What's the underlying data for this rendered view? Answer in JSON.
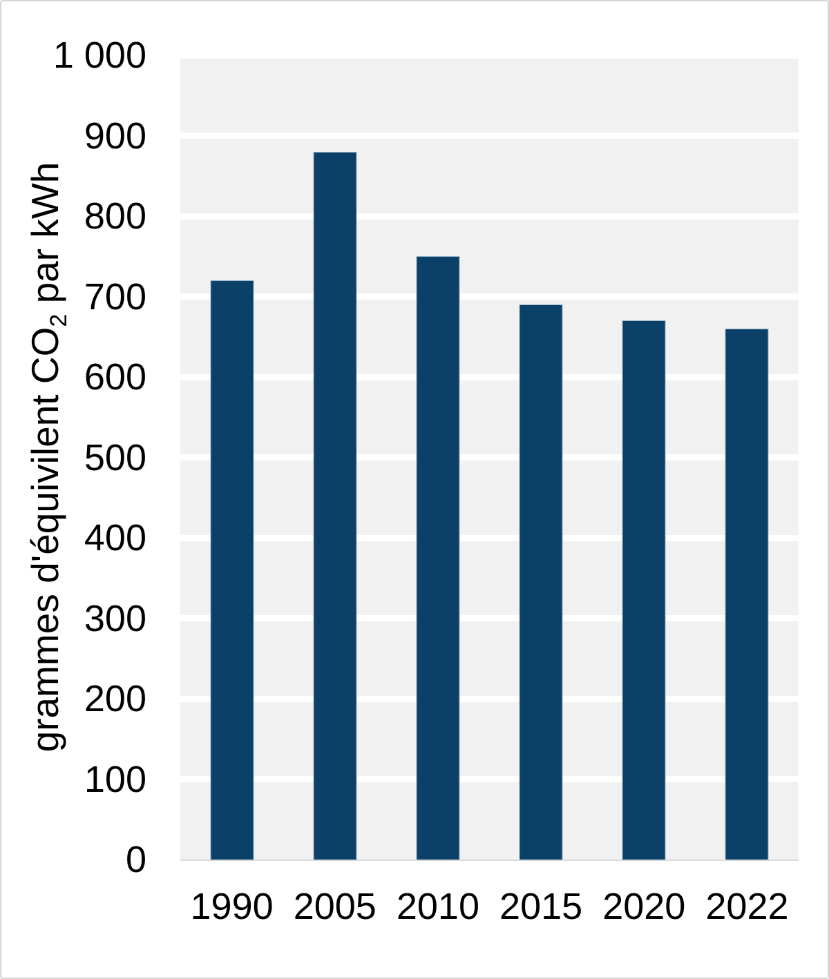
{
  "chart_data": {
    "type": "bar",
    "categories": [
      "1990",
      "2005",
      "2010",
      "2015",
      "2020",
      "2022"
    ],
    "values": [
      720,
      880,
      750,
      690,
      670,
      660
    ],
    "title": "",
    "xlabel": "",
    "ylabel": "grammes d'équivilent CO2 par kWh",
    "ylabel_parts": {
      "pre": "grammes d'équivilent CO",
      "sub": "2",
      "post": " par kWh"
    },
    "ylim": [
      0,
      1000
    ],
    "ytick_step": 100,
    "yticks": [
      "1 000",
      "900",
      "800",
      "700",
      "600",
      "500",
      "400",
      "300",
      "200",
      "100",
      "0"
    ],
    "grid": "horizontal-white-lines-on-gray-bands",
    "legend": "none",
    "colors": {
      "bar": "#0b4168",
      "bar_edge": "#afc6d6",
      "plot_band": "#f1f1f1",
      "gridline": "#ffffff",
      "axis_line": "#d9d9d9",
      "text": "#000000",
      "frame_border": "#d6d6d6",
      "background": "#ffffff"
    }
  }
}
